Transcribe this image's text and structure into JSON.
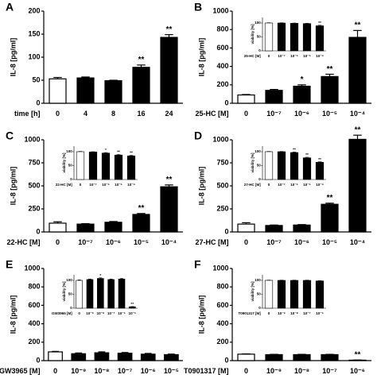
{
  "chart_data": [
    {
      "type": "bar",
      "panel": "A",
      "ylabel": "IL-8 [pg/ml]",
      "xlabel": "time [h]",
      "categories": [
        "0",
        "4",
        "8",
        "16",
        "24"
      ],
      "values": [
        53,
        55,
        49,
        78,
        143
      ],
      "errors": [
        3,
        2,
        1,
        5,
        6
      ],
      "significance": [
        null,
        null,
        null,
        "**",
        "**"
      ],
      "colors": [
        "#ffffff",
        "#000000",
        "#000000",
        "#000000",
        "#000000"
      ],
      "ylim": [
        0,
        200
      ],
      "yticks": [
        0,
        50,
        100,
        150,
        200
      ]
    },
    {
      "type": "bar",
      "panel": "B",
      "ylabel": "IL-8 [pg/ml]",
      "xlabel": "25-HC [M]",
      "categories": [
        "0",
        "10⁻⁷",
        "10⁻⁶",
        "10⁻⁵",
        "10⁻⁴"
      ],
      "values": [
        90,
        140,
        185,
        290,
        715
      ],
      "errors": [
        5,
        10,
        15,
        25,
        75
      ],
      "significance": [
        null,
        null,
        "*",
        "**",
        "**"
      ],
      "colors": [
        "#ffffff",
        "#000000",
        "#000000",
        "#000000",
        "#000000"
      ],
      "ylim": [
        0,
        1000
      ],
      "yticks": [
        0,
        200,
        400,
        600,
        800,
        1000
      ],
      "inset": {
        "type": "bar",
        "ylabel": "viability [%]",
        "xlabel": "25-HC [M]",
        "categories": [
          "0",
          "10⁻⁷",
          "10⁻⁶",
          "10⁻⁵",
          "10⁻⁴"
        ],
        "values": [
          100,
          100,
          99,
          98,
          90
        ],
        "errors": [
          1,
          1,
          1,
          1,
          2
        ],
        "significance": [
          null,
          null,
          null,
          null,
          "**"
        ],
        "colors": [
          "#ffffff",
          "#000000",
          "#000000",
          "#000000",
          "#000000"
        ],
        "ylim": [
          0,
          120
        ],
        "yticks": [
          0,
          50,
          100
        ]
      }
    },
    {
      "type": "bar",
      "panel": "C",
      "ylabel": "IL-8 [pg/ml]",
      "xlabel": "22-HC [M]",
      "categories": [
        "0",
        "10⁻⁷",
        "10⁻⁶",
        "10⁻⁵",
        "10⁻⁴"
      ],
      "values": [
        95,
        85,
        105,
        190,
        490
      ],
      "errors": [
        15,
        5,
        8,
        10,
        20
      ],
      "significance": [
        null,
        null,
        null,
        "**",
        "**"
      ],
      "colors": [
        "#ffffff",
        "#000000",
        "#000000",
        "#000000",
        "#000000"
      ],
      "ylim": [
        0,
        1000
      ],
      "yticks": [
        0,
        250,
        500,
        750,
        1000
      ],
      "inset": {
        "type": "bar",
        "ylabel": "viability [%]",
        "xlabel": "22-HC [M]",
        "categories": [
          "0",
          "10⁻⁷",
          "10⁻⁶",
          "10⁻⁵",
          "10⁻⁴"
        ],
        "values": [
          100,
          99,
          95,
          88,
          85
        ],
        "errors": [
          1,
          1,
          2,
          2,
          2
        ],
        "significance": [
          null,
          null,
          "*",
          "**",
          "**"
        ],
        "colors": [
          "#ffffff",
          "#000000",
          "#000000",
          "#000000",
          "#000000"
        ],
        "ylim": [
          0,
          120
        ],
        "yticks": [
          0,
          50,
          100
        ]
      }
    },
    {
      "type": "bar",
      "panel": "D",
      "ylabel": "IL-8 [pg/ml]",
      "xlabel": "27-HC [M]",
      "categories": [
        "0",
        "10⁻⁷",
        "10⁻⁶",
        "10⁻⁵",
        "10⁻⁴"
      ],
      "values": [
        85,
        70,
        75,
        300,
        1005
      ],
      "errors": [
        15,
        5,
        5,
        12,
        45
      ],
      "significance": [
        null,
        null,
        null,
        "**",
        "**"
      ],
      "colors": [
        "#ffffff",
        "#000000",
        "#000000",
        "#000000",
        "#000000"
      ],
      "ylim": [
        0,
        1000
      ],
      "yticks": [
        0,
        250,
        500,
        750,
        1000
      ],
      "inset": {
        "type": "bar",
        "ylabel": "viability [%]",
        "xlabel": "27-HC [M]",
        "categories": [
          "0",
          "10⁻⁷",
          "10⁻⁶",
          "10⁻⁵",
          "10⁻⁴"
        ],
        "values": [
          100,
          100,
          97,
          78,
          62
        ],
        "errors": [
          1,
          1,
          2,
          2,
          2
        ],
        "significance": [
          null,
          null,
          "**",
          "**",
          "**"
        ],
        "colors": [
          "#ffffff",
          "#000000",
          "#000000",
          "#000000",
          "#000000"
        ],
        "ylim": [
          0,
          120
        ],
        "yticks": [
          0,
          50,
          100
        ]
      }
    },
    {
      "type": "bar",
      "panel": "E",
      "ylabel": "IL-8 [pg/ml]",
      "xlabel": "GW3965 [M]",
      "categories": [
        "0",
        "10⁻⁹",
        "10⁻⁸",
        "10⁻⁷",
        "10⁻⁶",
        "10⁻⁵"
      ],
      "values": [
        95,
        75,
        85,
        80,
        70,
        65
      ],
      "errors": [
        5,
        8,
        10,
        8,
        8,
        6
      ],
      "significance": [
        null,
        null,
        null,
        null,
        null,
        null
      ],
      "colors": [
        "#ffffff",
        "#000000",
        "#000000",
        "#000000",
        "#000000",
        "#000000"
      ],
      "ylim": [
        0,
        1000
      ],
      "yticks": [
        0,
        200,
        400,
        600,
        800,
        1000
      ],
      "inset": {
        "type": "bar",
        "ylabel": "viability [%]",
        "xlabel": "GW3965 [M]",
        "categories": [
          "0",
          "10⁻⁹",
          "10⁻⁸",
          "10⁻⁷",
          "10⁻⁶",
          "10⁻⁵"
        ],
        "values": [
          100,
          103,
          107,
          103,
          105,
          5
        ],
        "errors": [
          2,
          2,
          2,
          2,
          2,
          1
        ],
        "significance": [
          null,
          null,
          "*",
          null,
          null,
          "**"
        ],
        "colors": [
          "#ffffff",
          "#000000",
          "#000000",
          "#000000",
          "#000000",
          "#000000"
        ],
        "ylim": [
          0,
          120
        ],
        "yticks": [
          0,
          50,
          100
        ]
      }
    },
    {
      "type": "bar",
      "panel": "F",
      "ylabel": "IL-8 [pg/ml]",
      "xlabel": "T0901317 [M]",
      "categories": [
        "0",
        "10⁻⁹",
        "10⁻⁸",
        "10⁻⁷",
        "10⁻⁶"
      ],
      "values": [
        70,
        65,
        65,
        65,
        5
      ],
      "errors": [
        3,
        3,
        3,
        3,
        2
      ],
      "significance": [
        null,
        null,
        null,
        null,
        "**"
      ],
      "colors": [
        "#ffffff",
        "#000000",
        "#000000",
        "#000000",
        "#000000"
      ],
      "ylim": [
        0,
        1000
      ],
      "yticks": [
        0,
        200,
        400,
        600,
        800,
        1000
      ],
      "inset": {
        "type": "bar",
        "ylabel": "viability [%]",
        "xlabel": "T0901317 [M]",
        "categories": [
          "0",
          "10⁻⁹",
          "10⁻⁸",
          "10⁻⁷",
          "10⁻⁶"
        ],
        "values": [
          100,
          100,
          100,
          100,
          98
        ],
        "errors": [
          1,
          1,
          1,
          1,
          1
        ],
        "significance": [
          null,
          null,
          null,
          null,
          null
        ],
        "colors": [
          "#ffffff",
          "#000000",
          "#000000",
          "#000000",
          "#000000"
        ],
        "ylim": [
          0,
          120
        ],
        "yticks": [
          0,
          50,
          100
        ]
      }
    }
  ]
}
